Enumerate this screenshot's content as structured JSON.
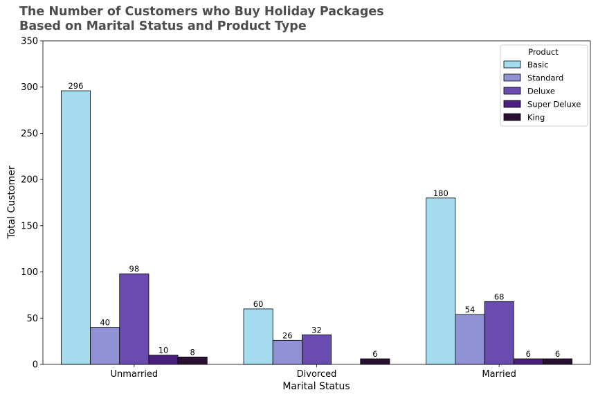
{
  "chart_data": {
    "type": "bar",
    "title_lines": [
      "The Number of Customers who Buy Holiday Packages",
      "Based on Marital Status and Product Type"
    ],
    "xlabel": "Marital Status",
    "ylabel": "Total Customer",
    "categories": [
      "Unmarried",
      "Divorced",
      "Married"
    ],
    "ylim": [
      0,
      350
    ],
    "yticks": [
      0,
      50,
      100,
      150,
      200,
      250,
      300,
      350
    ],
    "grid": false,
    "legend": {
      "title": "Product",
      "placement": "top-right"
    },
    "series": [
      {
        "name": "Basic",
        "color": "#a4dbef",
        "values": [
          296,
          60,
          180
        ]
      },
      {
        "name": "Standard",
        "color": "#9191d6",
        "values": [
          40,
          26,
          54
        ]
      },
      {
        "name": "Deluxe",
        "color": "#6a4cb0",
        "values": [
          98,
          32,
          68
        ]
      },
      {
        "name": "Super Deluxe",
        "color": "#4a1f7d",
        "values": [
          10,
          null,
          6
        ]
      },
      {
        "name": "King",
        "color": "#2a1133",
        "values": [
          8,
          6,
          6
        ]
      }
    ]
  }
}
